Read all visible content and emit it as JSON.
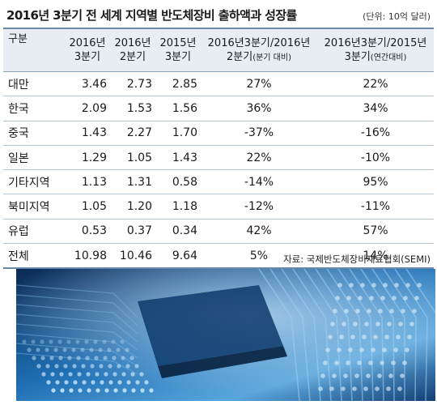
{
  "title": "2016년 3분기 전 세계 지역별 반도체장비 출하액과 성장률",
  "unit": "(단위: 10억 달러)",
  "table": {
    "headers": {
      "region": "구분",
      "c1": [
        "2016년",
        "3분기"
      ],
      "c2": [
        "2016년",
        "2분기"
      ],
      "c3": [
        "2015년",
        "3분기"
      ],
      "c4_main": "2016년3분기/2016년",
      "c4_sub": "2분기",
      "c4_note": "(분기 대비)",
      "c5_main": "2016년3분기/2015년",
      "c5_sub": "3분기",
      "c5_note": "(연간대비)"
    },
    "rows": [
      {
        "region": "대만",
        "q3_2016": "3.46",
        "q2_2016": "2.73",
        "q3_2015": "2.85",
        "qoq": "27%",
        "yoy": "22%"
      },
      {
        "region": "한국",
        "q3_2016": "2.09",
        "q2_2016": "1.53",
        "q3_2015": "1.56",
        "qoq": "36%",
        "yoy": "34%"
      },
      {
        "region": "중국",
        "q3_2016": "1.43",
        "q2_2016": "2.27",
        "q3_2015": "1.70",
        "qoq": "-37%",
        "yoy": "-16%"
      },
      {
        "region": "일본",
        "q3_2016": "1.29",
        "q2_2016": "1.05",
        "q3_2015": "1.43",
        "qoq": "22%",
        "yoy": "-10%"
      },
      {
        "region": "기타지역",
        "q3_2016": "1.13",
        "q2_2016": "1.31",
        "q3_2015": "0.58",
        "qoq": "-14%",
        "yoy": "95%"
      },
      {
        "region": "북미지역",
        "q3_2016": "1.05",
        "q2_2016": "1.20",
        "q3_2015": "1.18",
        "qoq": "-12%",
        "yoy": "-11%"
      },
      {
        "region": "유럽",
        "q3_2016": "0.53",
        "q2_2016": "0.37",
        "q3_2015": "0.34",
        "qoq": "42%",
        "yoy": "57%"
      },
      {
        "region": "전체",
        "q3_2016": "10.98",
        "q2_2016": "10.46",
        "q3_2015": "9.64",
        "qoq": "5%",
        "yoy": "14%"
      }
    ]
  },
  "source": "자료: 국제반도체장비재료협회(SEMI)",
  "image": {
    "subject": "semiconductor-circuit-board-photo",
    "tint": "#1d6fb0"
  }
}
